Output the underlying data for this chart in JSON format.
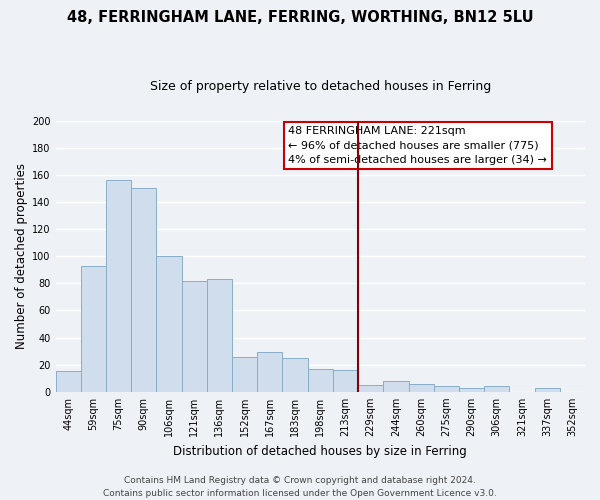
{
  "title": "48, FERRINGHAM LANE, FERRING, WORTHING, BN12 5LU",
  "subtitle": "Size of property relative to detached houses in Ferring",
  "xlabel": "Distribution of detached houses by size in Ferring",
  "ylabel": "Number of detached properties",
  "categories": [
    "44sqm",
    "59sqm",
    "75sqm",
    "90sqm",
    "106sqm",
    "121sqm",
    "136sqm",
    "152sqm",
    "167sqm",
    "183sqm",
    "198sqm",
    "213sqm",
    "229sqm",
    "244sqm",
    "260sqm",
    "275sqm",
    "290sqm",
    "306sqm",
    "321sqm",
    "337sqm",
    "352sqm"
  ],
  "values": [
    15,
    93,
    156,
    150,
    100,
    82,
    83,
    26,
    29,
    25,
    17,
    16,
    5,
    8,
    6,
    4,
    3,
    4,
    0,
    3,
    0
  ],
  "bar_color": "#cfdded",
  "bar_edge_color": "#8aaec8",
  "vline_index": 12,
  "vline_color": "#8b0000",
  "annotation_title": "48 FERRINGHAM LANE: 221sqm",
  "annotation_line1": "← 96% of detached houses are smaller (775)",
  "annotation_line2": "4% of semi-detached houses are larger (34) →",
  "ylim": [
    0,
    200
  ],
  "yticks": [
    0,
    20,
    40,
    60,
    80,
    100,
    120,
    140,
    160,
    180,
    200
  ],
  "footer_line1": "Contains HM Land Registry data © Crown copyright and database right 2024.",
  "footer_line2": "Contains public sector information licensed under the Open Government Licence v3.0.",
  "background_color": "#eef2f7",
  "plot_bg_color": "#eef2f7",
  "grid_color": "#ffffff",
  "title_fontsize": 10.5,
  "subtitle_fontsize": 9,
  "label_fontsize": 8.5,
  "tick_fontsize": 7,
  "footer_fontsize": 6.5,
  "annotation_fontsize": 8
}
